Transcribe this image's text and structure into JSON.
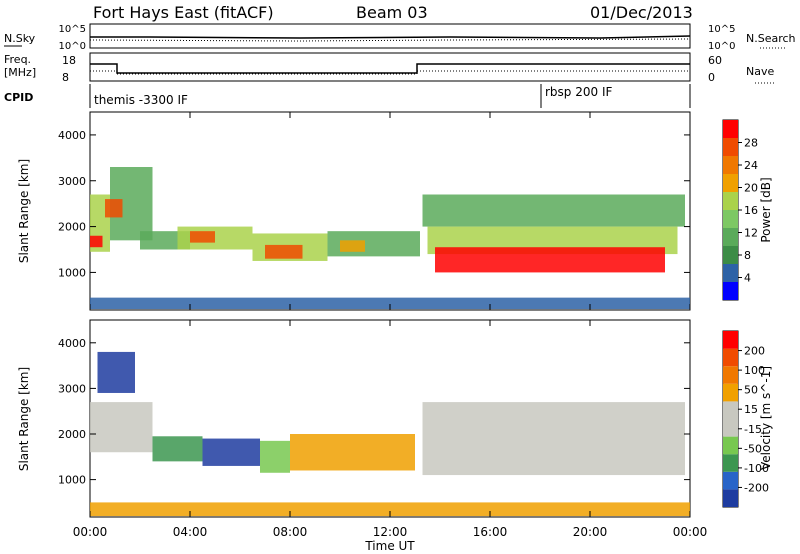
{
  "header": {
    "station": "Fort Hays East (fitACF)",
    "beam": "Beam 03",
    "date": "01/Dec/2013"
  },
  "status_panels": {
    "nsky": {
      "label": "N.Sky",
      "ticks": [
        "10^5",
        "10^0"
      ]
    },
    "nsearch": {
      "label": "N.Search",
      "ticks": [
        "10^5",
        "10^0"
      ]
    },
    "freq": {
      "label_top": "Freq.",
      "label_bottom": "[MHz]",
      "ticks": [
        "18",
        "8"
      ]
    },
    "nave": {
      "label": "Nave",
      "ticks": [
        "60",
        "0"
      ]
    },
    "cpid": {
      "label": "CPID",
      "modes": [
        "themis -3300 IF",
        "rbsp 200 IF"
      ]
    }
  },
  "colors": {
    "power": [
      "#0000ff",
      "#2d62a6",
      "#3c8c46",
      "#5aaa5a",
      "#7dc864",
      "#aad24b",
      "#f0a000",
      "#f07800",
      "#f04b00",
      "#ff0000"
    ],
    "velocity": [
      "#1e3ca0",
      "#2864c8",
      "#3c9650",
      "#78c850",
      "#c8c8c0",
      "#c8c8c0",
      "#f0a000",
      "#f07800",
      "#f04b00",
      "#ff0000"
    ]
  },
  "chart_data": [
    {
      "type": "heatmap",
      "title": "",
      "xlabel": "",
      "ylabel": "Slant Range [km]",
      "xlim": [
        0,
        24
      ],
      "ylim": [
        180,
        4500
      ],
      "yticks": [
        1000,
        2000,
        3000,
        4000
      ],
      "colorbar": {
        "label": "Power [dB]",
        "ticks": [
          "28",
          "24",
          "20",
          "16",
          "12",
          "8",
          "4"
        ],
        "range": [
          0,
          30
        ]
      },
      "regions": [
        {
          "t0": 0.0,
          "t1": 0.8,
          "r0": 1450,
          "r1": 2700,
          "level": 0.55
        },
        {
          "t0": 0.0,
          "t1": 0.5,
          "r0": 1550,
          "r1": 1800,
          "level": 0.95
        },
        {
          "t0": 0.8,
          "t1": 2.5,
          "r0": 1700,
          "r1": 3300,
          "level": 0.3
        },
        {
          "t0": 0.6,
          "t1": 1.3,
          "r0": 2200,
          "r1": 2600,
          "level": 0.9
        },
        {
          "t0": 2.0,
          "t1": 4.0,
          "r0": 1500,
          "r1": 1900,
          "level": 0.35
        },
        {
          "t0": 3.5,
          "t1": 6.5,
          "r0": 1500,
          "r1": 2000,
          "level": 0.55
        },
        {
          "t0": 4.0,
          "t1": 5.0,
          "r0": 1650,
          "r1": 1900,
          "level": 0.92
        },
        {
          "t0": 6.5,
          "t1": 9.5,
          "r0": 1250,
          "r1": 1850,
          "level": 0.55
        },
        {
          "t0": 7.0,
          "t1": 8.5,
          "r0": 1300,
          "r1": 1600,
          "level": 0.9
        },
        {
          "t0": 9.5,
          "t1": 13.2,
          "r0": 1350,
          "r1": 1900,
          "level": 0.35
        },
        {
          "t0": 10.0,
          "t1": 11.0,
          "r0": 1450,
          "r1": 1700,
          "level": 0.7
        },
        {
          "t0": 13.3,
          "t1": 23.8,
          "r0": 2000,
          "r1": 2700,
          "level": 0.3
        },
        {
          "t0": 13.5,
          "t1": 23.5,
          "r0": 1400,
          "r1": 2000,
          "level": 0.6
        },
        {
          "t0": 13.8,
          "t1": 23.0,
          "r0": 1000,
          "r1": 1550,
          "level": 0.95
        },
        {
          "t0": 0.0,
          "t1": 24.0,
          "r0": 200,
          "r1": 450,
          "level": 0.15
        }
      ]
    },
    {
      "type": "heatmap",
      "title": "",
      "xlabel": "Time UT",
      "ylabel": "Slant Range [km]",
      "xlim": [
        0,
        24
      ],
      "ylim": [
        180,
        4500
      ],
      "xticks": [
        "00:00",
        "04:00",
        "08:00",
        "12:00",
        "16:00",
        "20:00",
        "00:00"
      ],
      "yticks": [
        1000,
        2000,
        3000,
        4000
      ],
      "colorbar": {
        "label": "Velocity [m s^-1]",
        "ticks": [
          "200",
          "100",
          "50",
          "15",
          "-15",
          "-50",
          "-100",
          "-200"
        ],
        "range": [
          -250,
          250
        ]
      },
      "regions": [
        {
          "t0": 0.0,
          "t1": 2.5,
          "r0": 1600,
          "r1": 2700,
          "level": 0.45
        },
        {
          "t0": 0.3,
          "t1": 1.8,
          "r0": 2900,
          "r1": 3800,
          "level": 0.05
        },
        {
          "t0": 2.5,
          "t1": 4.5,
          "r0": 1400,
          "r1": 1950,
          "level": 0.2
        },
        {
          "t0": 4.5,
          "t1": 6.8,
          "r0": 1300,
          "r1": 1900,
          "level": 0.05
        },
        {
          "t0": 6.8,
          "t1": 8.0,
          "r0": 1150,
          "r1": 1850,
          "level": 0.3
        },
        {
          "t0": 8.0,
          "t1": 13.0,
          "r0": 1200,
          "r1": 2000,
          "level": 0.62
        },
        {
          "t0": 13.3,
          "t1": 23.8,
          "r0": 1100,
          "r1": 2700,
          "level": 0.47
        },
        {
          "t0": 0.0,
          "t1": 24.0,
          "r0": 200,
          "r1": 500,
          "level": 0.62
        }
      ]
    }
  ]
}
